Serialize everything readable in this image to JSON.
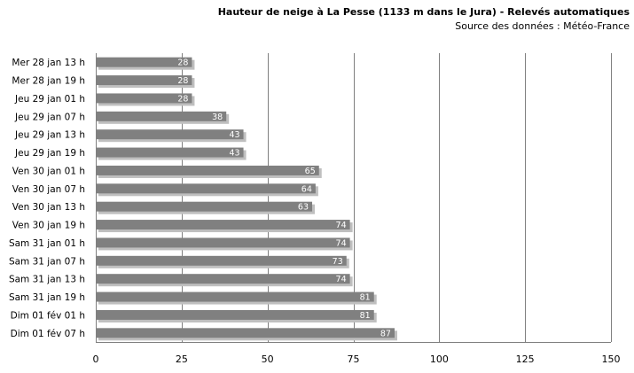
{
  "chart_data": {
    "type": "bar",
    "orientation": "horizontal",
    "title": "Hauteur de neige à La Pesse (1133 m dans le Jura) - Relevés automatiques",
    "subtitle": "Source des données : Météo-France",
    "categories": [
      "Mer 28 jan 13 h",
      "Mer 28 jan 19 h",
      "Jeu 29 jan 01 h",
      "Jeu 29 jan 07 h",
      "Jeu 29 jan 13 h",
      "Jeu 29 jan 19 h",
      "Ven 30 jan 01 h",
      "Ven 30 jan 07 h",
      "Ven 30 jan 13 h",
      "Ven 30 jan 19 h",
      "Sam 31 jan 01 h",
      "Sam 31 jan 07 h",
      "Sam 31 jan 13 h",
      "Sam 31 jan 19 h",
      "Dim 01 fév 01 h",
      "Dim 01 fév 07 h"
    ],
    "values": [
      28,
      28,
      28,
      38,
      43,
      43,
      65,
      64,
      63,
      74,
      74,
      73,
      74,
      81,
      81,
      87
    ],
    "data_labels": [
      "28",
      "28",
      "28",
      "38",
      "43",
      "43",
      "65",
      "64",
      "63",
      "74",
      "74",
      "73",
      "74",
      "81",
      "81",
      "87"
    ],
    "xlim": [
      0,
      150
    ],
    "xticks": [
      "0",
      "25",
      "50",
      "75",
      "100",
      "125",
      "150"
    ],
    "xlabel": "",
    "ylabel": "",
    "grid": "vertical",
    "legend": "none",
    "colors": {
      "bar": "#808080",
      "shadow": "#bfbfbf",
      "grid": "#7f7f7f",
      "data_label": "#ffffff"
    }
  }
}
